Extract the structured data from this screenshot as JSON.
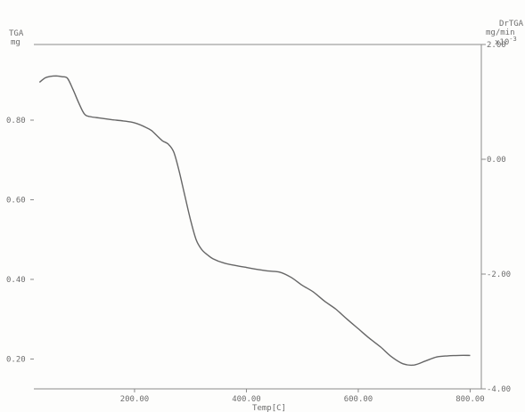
{
  "chart_data": {
    "type": "line",
    "title": "",
    "xlabel": "Temp[C]",
    "left_axis": {
      "label_line1": "TGA",
      "label_line2": "mg"
    },
    "right_axis": {
      "label_line1": "DrTGA",
      "label_line2": "mg/min",
      "multiplier": "x10",
      "multiplier_exp": "-3"
    },
    "xlim": [
      20,
      820
    ],
    "ylim": [
      0.125,
      0.99
    ],
    "y2lim": [
      -4.0,
      2.0
    ],
    "x_ticks": [
      "200.00",
      "400.00",
      "600.00",
      "800.00"
    ],
    "x_tick_values": [
      200,
      400,
      600,
      800
    ],
    "y_ticks": [
      "0.80",
      "0.60",
      "0.40",
      "0.20"
    ],
    "y_tick_values": [
      0.8,
      0.6,
      0.4,
      0.2
    ],
    "y2_ticks": [
      "2.00",
      "0.00",
      "-2.00",
      "-4.00"
    ],
    "y2_tick_values": [
      2.0,
      0.0,
      -2.0,
      -4.0
    ],
    "grid": false,
    "series": [
      {
        "color": "#666666",
        "x": [
          30,
          40,
          50,
          60,
          70,
          80,
          90,
          100,
          110,
          120,
          140,
          160,
          180,
          200,
          220,
          230,
          240,
          250,
          260,
          270,
          280,
          290,
          300,
          310,
          320,
          330,
          340,
          360,
          380,
          400,
          420,
          440,
          460,
          480,
          500,
          520,
          540,
          560,
          580,
          600,
          620,
          640,
          660,
          680,
          700,
          720,
          740,
          760,
          780,
          800
        ],
        "y": [
          0.895,
          0.906,
          0.91,
          0.911,
          0.909,
          0.905,
          0.877,
          0.844,
          0.816,
          0.809,
          0.805,
          0.801,
          0.798,
          0.793,
          0.782,
          0.774,
          0.761,
          0.748,
          0.74,
          0.72,
          0.67,
          0.61,
          0.55,
          0.5,
          0.475,
          0.462,
          0.452,
          0.441,
          0.435,
          0.43,
          0.425,
          0.421,
          0.418,
          0.405,
          0.385,
          0.368,
          0.345,
          0.325,
          0.3,
          0.276,
          0.252,
          0.23,
          0.205,
          0.188,
          0.185,
          0.195,
          0.205,
          0.208,
          0.209,
          0.209
        ]
      }
    ]
  }
}
